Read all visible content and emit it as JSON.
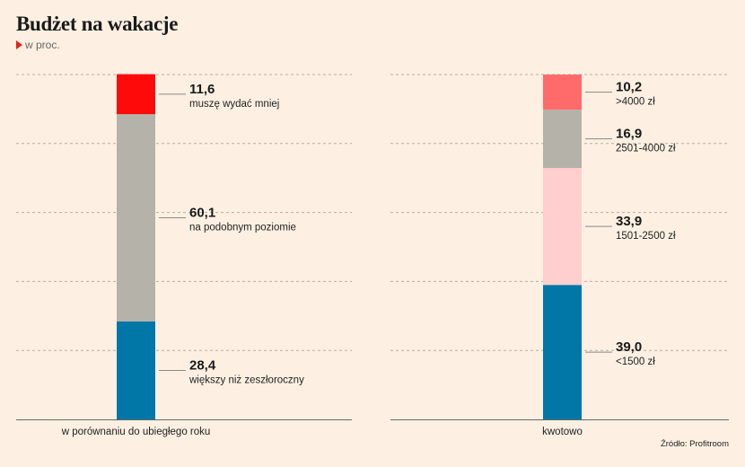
{
  "header": {
    "title": "Budżet na wakacje",
    "subtitle": "w proc.",
    "source": "Źródło: Profitroom"
  },
  "colors": {
    "background": "#fdf0e2",
    "grid": "#b5aca3",
    "leader": "#888888",
    "axis": "#666666"
  },
  "chart_data": [
    {
      "type": "bar",
      "stacked": true,
      "category": "w porównaniu do ubiegłego roku",
      "ylim": [
        0,
        100
      ],
      "grid": true,
      "series": [
        {
          "name": "większy niż zeszłoroczny",
          "value": 28.4,
          "label": "28,4",
          "color": "#0077a6"
        },
        {
          "name": "na podobnym poziomie",
          "value": 60.1,
          "label": "60,1",
          "color": "#b4b2a9"
        },
        {
          "name": "muszę wydać mniej",
          "value": 11.6,
          "label": "11,6",
          "color": "#ff0a0a"
        }
      ]
    },
    {
      "type": "bar",
      "stacked": true,
      "category": "kwotowo",
      "ylim": [
        0,
        100
      ],
      "grid": true,
      "series": [
        {
          "name": "<1500 zł",
          "value": 39.0,
          "label": "39,0",
          "color": "#0077a6"
        },
        {
          "name": "1501-2500 zł",
          "value": 33.9,
          "label": "33,9",
          "color": "#ffcfcf"
        },
        {
          "name": "2501-4000 zł",
          "value": 16.9,
          "label": "16,9",
          "color": "#b4b2a9"
        },
        {
          "name": ">4000 zł",
          "value": 10.2,
          "label": "10,2",
          "color": "#ff6b6b"
        }
      ]
    }
  ]
}
